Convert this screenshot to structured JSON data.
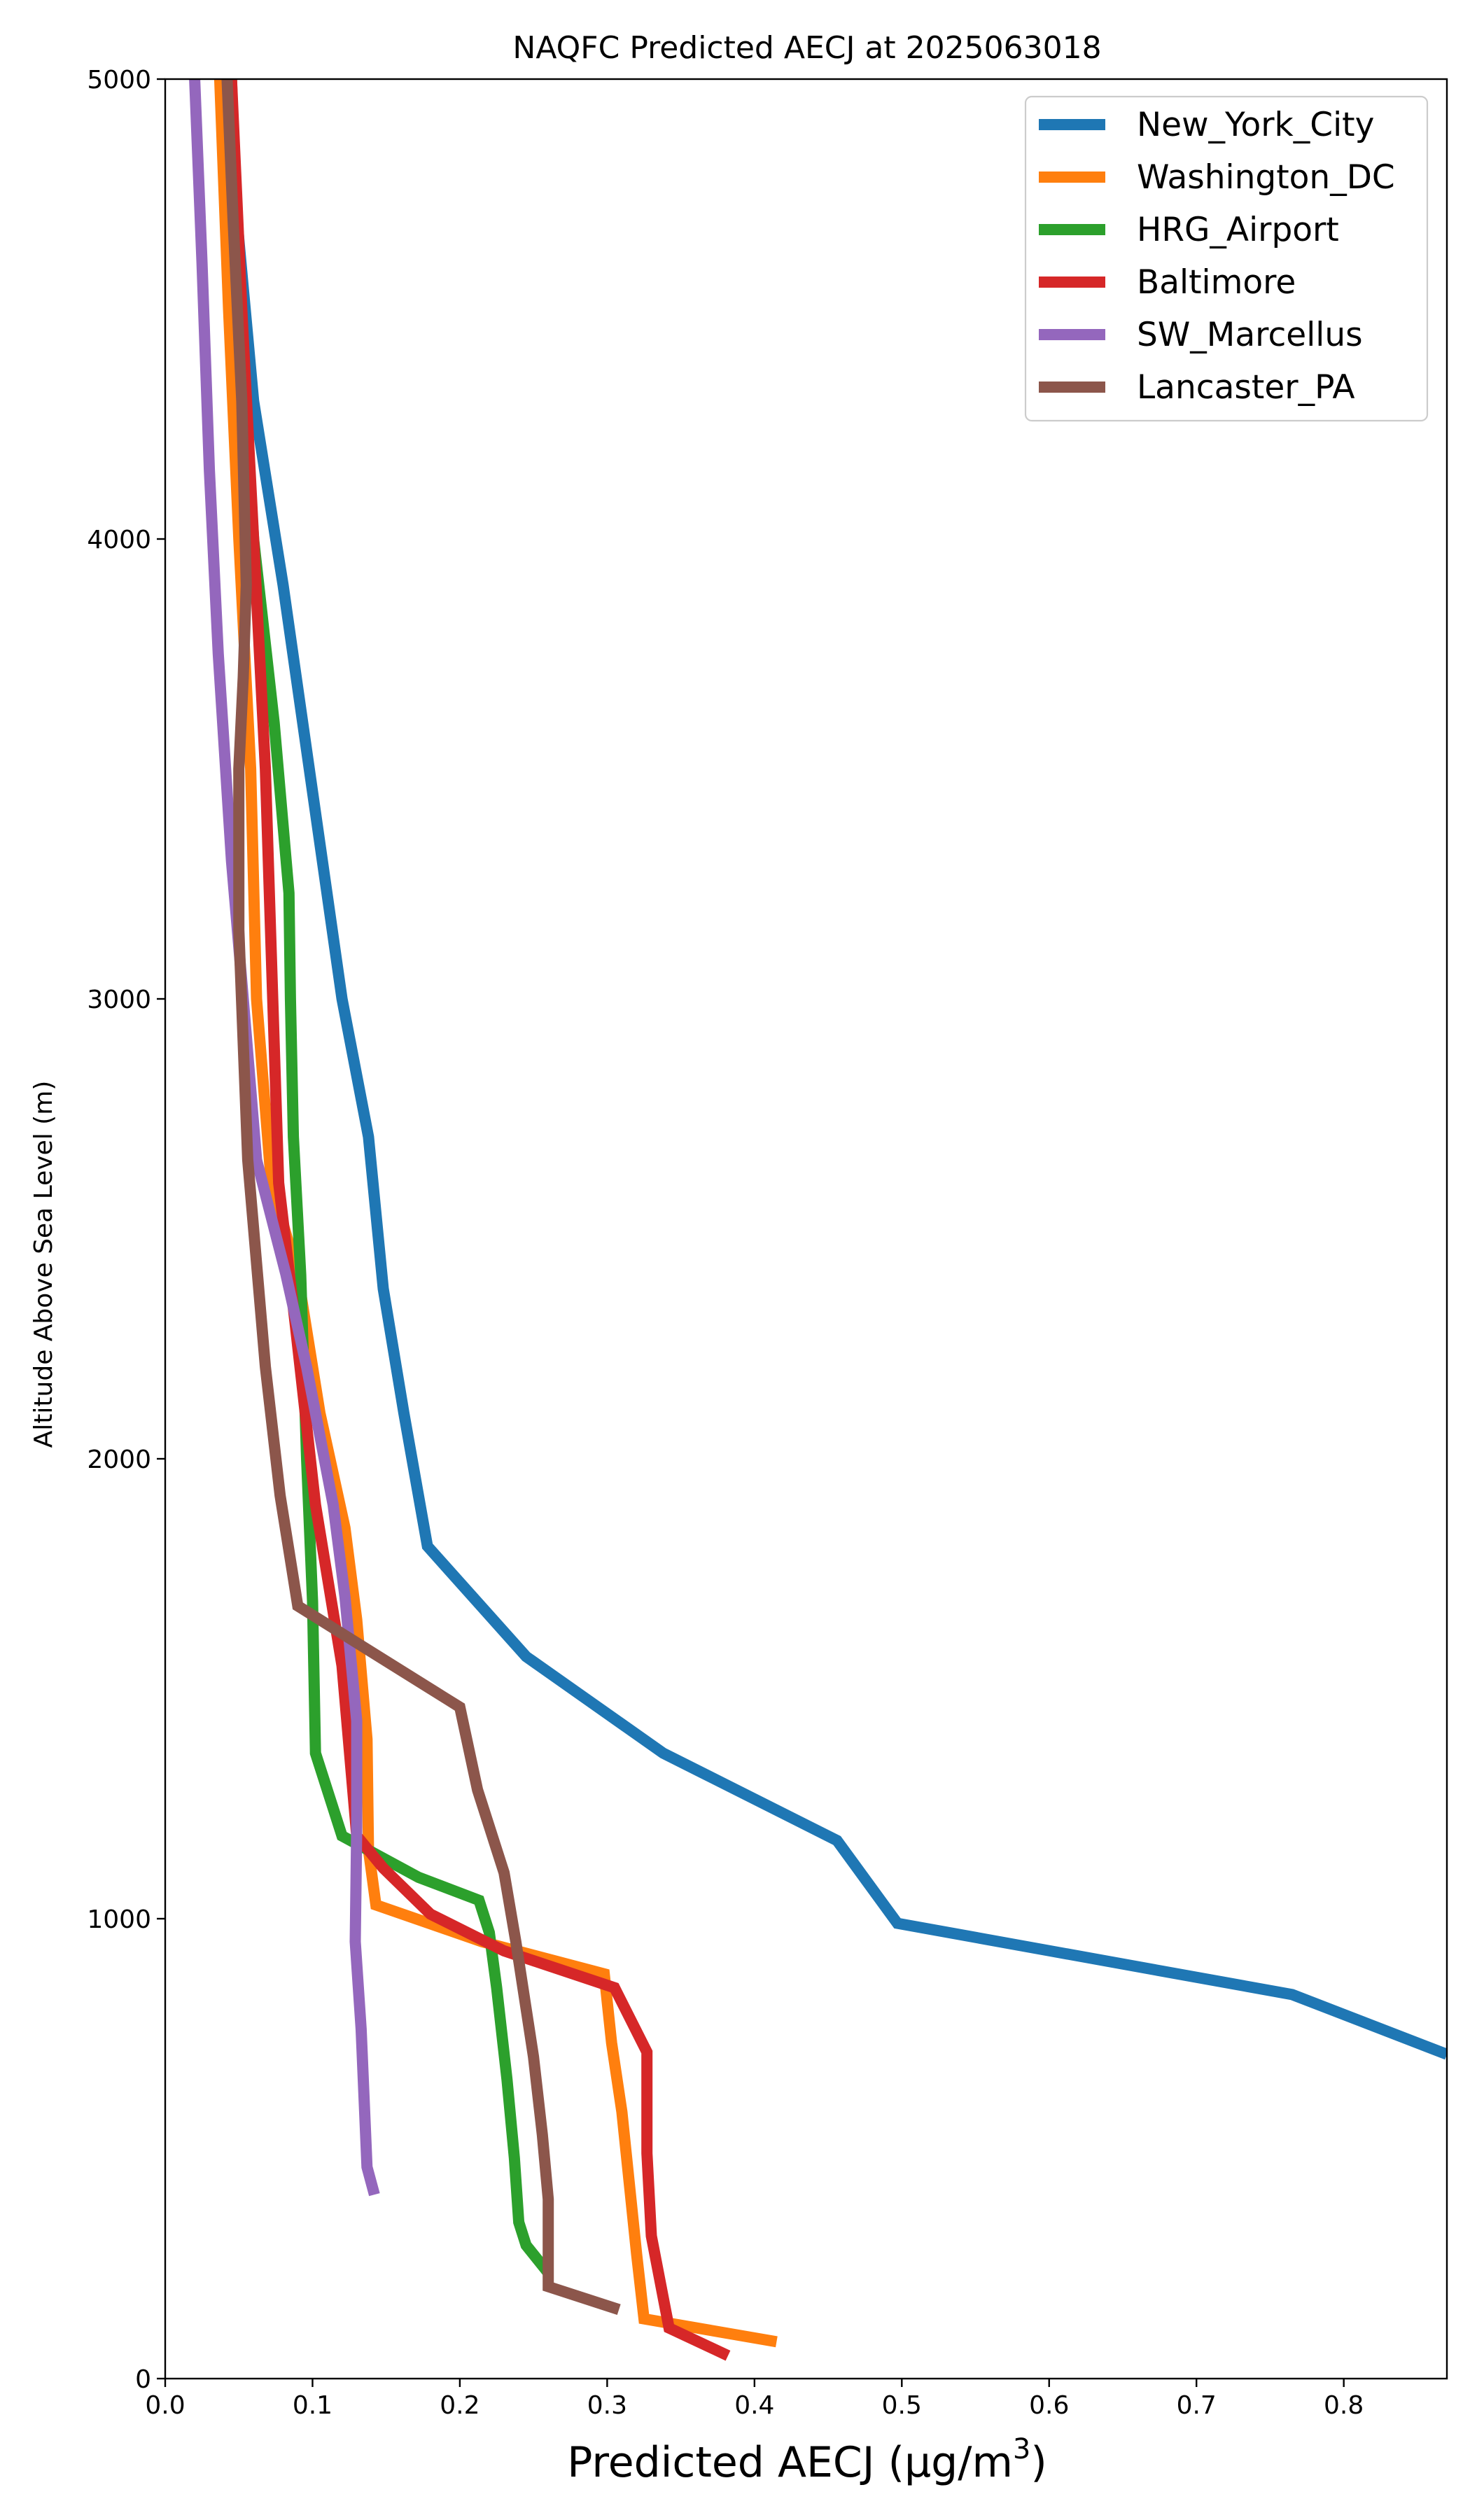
{
  "chart_data": {
    "type": "line",
    "title": "NAQFC Predicted AECJ at 2025063018",
    "xlabel": "Predicted AECJ (μg/m",
    "xlabel_sup": "3",
    "xlabel_tail": ")",
    "ylabel": "Altitude Above Sea Level (m)",
    "xlim": [
      0,
      0.87
    ],
    "ylim": [
      0,
      5000
    ],
    "xticks": [
      0,
      0.1,
      0.2,
      0.3,
      0.4,
      0.5,
      0.6,
      0.7,
      0.8
    ],
    "xtick_labels": [
      "0.0",
      "0.1",
      "0.2",
      "0.3",
      "0.4",
      "0.5",
      "0.6",
      "0.7",
      "0.8"
    ],
    "yticks": [
      0,
      1000,
      2000,
      3000,
      4000,
      5000
    ],
    "ytick_labels": [
      "0",
      "1000",
      "2000",
      "3000",
      "4000",
      "5000"
    ],
    "grid": false,
    "legend_position": "top-right",
    "series": [
      {
        "name": "New_York_City",
        "color": "#1f77b4",
        "points": [
          [
            0.04,
            5000
          ],
          [
            0.06,
            4300
          ],
          [
            0.08,
            3900
          ],
          [
            0.1,
            3450
          ],
          [
            0.12,
            3000
          ],
          [
            0.138,
            2700
          ],
          [
            0.148,
            2370
          ],
          [
            0.162,
            2100
          ],
          [
            0.178,
            1810
          ],
          [
            0.245,
            1570
          ],
          [
            0.338,
            1360
          ],
          [
            0.456,
            1170
          ],
          [
            0.497,
            990
          ],
          [
            0.765,
            835
          ],
          [
            0.87,
            705
          ]
        ]
      },
      {
        "name": "Washington_DC",
        "color": "#ff7f0e",
        "points": [
          [
            0.037,
            5000
          ],
          [
            0.043,
            4500
          ],
          [
            0.05,
            4000
          ],
          [
            0.058,
            3500
          ],
          [
            0.062,
            3000
          ],
          [
            0.072,
            2600
          ],
          [
            0.09,
            2400
          ],
          [
            0.105,
            2100
          ],
          [
            0.122,
            1850
          ],
          [
            0.13,
            1650
          ],
          [
            0.137,
            1390
          ],
          [
            0.138,
            1150
          ],
          [
            0.143,
            1030
          ],
          [
            0.215,
            950
          ],
          [
            0.298,
            880
          ],
          [
            0.303,
            730
          ],
          [
            0.31,
            580
          ],
          [
            0.32,
            270
          ],
          [
            0.325,
            130
          ],
          [
            0.415,
            80
          ]
        ]
      },
      {
        "name": "HRG_Airport",
        "color": "#2ca02c",
        "points": [
          [
            0.045,
            5000
          ],
          [
            0.05,
            4500
          ],
          [
            0.06,
            4000
          ],
          [
            0.074,
            3600
          ],
          [
            0.084,
            3230
          ],
          [
            0.085,
            3000
          ],
          [
            0.087,
            2700
          ],
          [
            0.092,
            2400
          ],
          [
            0.096,
            2000
          ],
          [
            0.1,
            1690
          ],
          [
            0.102,
            1360
          ],
          [
            0.12,
            1180
          ],
          [
            0.172,
            1090
          ],
          [
            0.213,
            1040
          ],
          [
            0.22,
            970
          ],
          [
            0.225,
            850
          ],
          [
            0.232,
            650
          ],
          [
            0.237,
            480
          ],
          [
            0.24,
            340
          ],
          [
            0.245,
            290
          ],
          [
            0.26,
            230
          ]
        ]
      },
      {
        "name": "Baltimore",
        "color": "#d62728",
        "points": [
          [
            0.045,
            5000
          ],
          [
            0.052,
            4500
          ],
          [
            0.06,
            4000
          ],
          [
            0.068,
            3500
          ],
          [
            0.072,
            3100
          ],
          [
            0.077,
            2600
          ],
          [
            0.088,
            2300
          ],
          [
            0.102,
            1900
          ],
          [
            0.12,
            1550
          ],
          [
            0.13,
            1180
          ],
          [
            0.148,
            1110
          ],
          [
            0.18,
            1010
          ],
          [
            0.23,
            930
          ],
          [
            0.305,
            850
          ],
          [
            0.327,
            710
          ],
          [
            0.327,
            490
          ],
          [
            0.33,
            310
          ],
          [
            0.342,
            110
          ],
          [
            0.382,
            50
          ]
        ]
      },
      {
        "name": "SW_Marcellus",
        "color": "#9467bd",
        "points": [
          [
            0.02,
            5000
          ],
          [
            0.025,
            4600
          ],
          [
            0.03,
            4150
          ],
          [
            0.036,
            3750
          ],
          [
            0.045,
            3300
          ],
          [
            0.053,
            3000
          ],
          [
            0.062,
            2650
          ],
          [
            0.082,
            2400
          ],
          [
            0.096,
            2200
          ],
          [
            0.114,
            1900
          ],
          [
            0.122,
            1700
          ],
          [
            0.13,
            1430
          ],
          [
            0.13,
            1200
          ],
          [
            0.129,
            950
          ],
          [
            0.133,
            760
          ],
          [
            0.137,
            460
          ],
          [
            0.142,
            400
          ]
        ]
      },
      {
        "name": "Lancaster_PA",
        "color": "#8c564b",
        "points": [
          [
            0.042,
            5000
          ],
          [
            0.046,
            4700
          ],
          [
            0.052,
            4300
          ],
          [
            0.055,
            3900
          ],
          [
            0.053,
            3700
          ],
          [
            0.05,
            3500
          ],
          [
            0.05,
            3150
          ],
          [
            0.056,
            2650
          ],
          [
            0.068,
            2200
          ],
          [
            0.078,
            1920
          ],
          [
            0.09,
            1680
          ],
          [
            0.2,
            1460
          ],
          [
            0.212,
            1280
          ],
          [
            0.23,
            1100
          ],
          [
            0.238,
            950
          ],
          [
            0.25,
            700
          ],
          [
            0.256,
            530
          ],
          [
            0.26,
            390
          ],
          [
            0.26,
            200
          ],
          [
            0.308,
            150
          ]
        ]
      }
    ]
  }
}
